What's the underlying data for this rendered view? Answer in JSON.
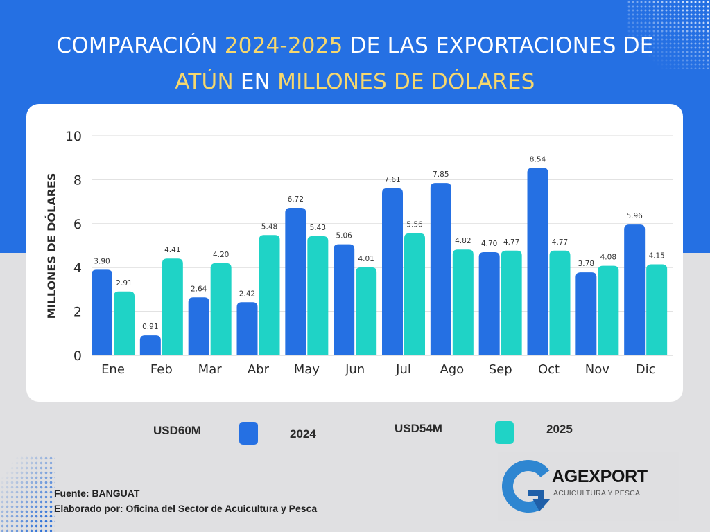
{
  "title": {
    "line1": [
      {
        "text": "COMPARACIÓN ",
        "highlight": false
      },
      {
        "text": "2024-2025",
        "highlight": true
      },
      {
        "text": " DE LAS EXPORTACIONES DE",
        "highlight": false
      }
    ],
    "line2": [
      {
        "text": "ATÚN",
        "highlight": true
      },
      {
        "text": " EN ",
        "highlight": false
      },
      {
        "text": "MILLONES DE DÓLARES",
        "highlight": true
      }
    ]
  },
  "colors": {
    "background_top": "#2570e3",
    "background_bottom": "#e0e0e2",
    "highlight": "#f5d76e",
    "series_2024": "#2570e3",
    "series_2025": "#1fd3c6"
  },
  "chart_data": {
    "type": "bar",
    "title": "COMPARACIÓN 2024-2025 DE LAS EXPORTACIONES DE ATÚN EN MILLONES DE DÓLARES",
    "xlabel": "",
    "ylabel": "MILLONES DE DÓLARES",
    "ylim": [
      0,
      10
    ],
    "yticks": [
      0,
      2,
      4,
      6,
      8,
      10
    ],
    "grid": true,
    "categories": [
      "Ene",
      "Feb",
      "Mar",
      "Abr",
      "May",
      "Jun",
      "Jul",
      "Ago",
      "Sep",
      "Oct",
      "Nov",
      "Dic"
    ],
    "series": [
      {
        "name": "2024",
        "color": "#2570e3",
        "values": [
          3.9,
          0.91,
          2.64,
          2.42,
          6.72,
          5.06,
          7.61,
          7.85,
          4.7,
          8.54,
          3.78,
          5.96
        ]
      },
      {
        "name": "2025",
        "color": "#1fd3c6",
        "values": [
          2.91,
          4.41,
          4.2,
          5.48,
          5.43,
          4.01,
          5.56,
          4.82,
          4.77,
          4.77,
          4.08,
          4.15
        ]
      }
    ],
    "legend_position": "bottom"
  },
  "legend": [
    {
      "total": "USD60M",
      "label": "2024"
    },
    {
      "total": "USD54M",
      "label": "2025"
    }
  ],
  "footer": {
    "source": "Fuente: BANGUAT",
    "author": "Elaborado por: Oficina del Sector de Acuicultura y Pesca"
  },
  "logo": {
    "name": "AGEXPORT",
    "subtitle": "ACUICULTURA Y PESCA"
  }
}
